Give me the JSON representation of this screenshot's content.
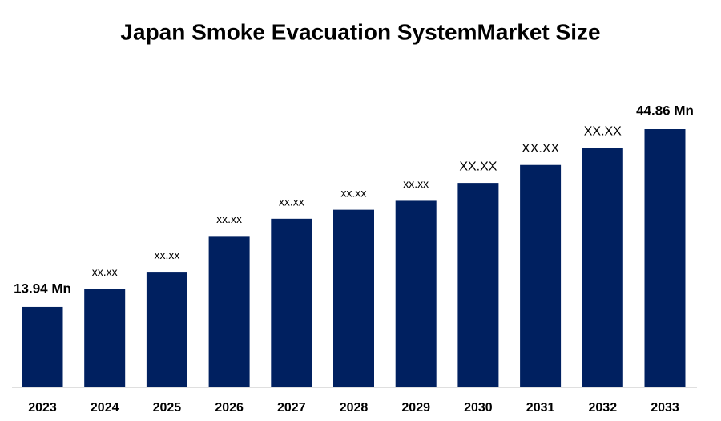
{
  "chart_data": {
    "type": "bar",
    "title": "Japan Smoke Evacuation SystemMarket Size",
    "categories": [
      "2023",
      "2024",
      "2025",
      "2026",
      "2027",
      "2028",
      "2029",
      "2030",
      "2031",
      "2032",
      "2033"
    ],
    "values": [
      13.94,
      17.06,
      20.05,
      26.28,
      29.28,
      30.84,
      32.4,
      35.51,
      38.63,
      41.62,
      44.86
    ],
    "value_labels": [
      "13.94 Mn",
      "xx.xx",
      "xx.xx",
      "xx.xx",
      "xx.xx",
      "xx.xx",
      "xx.xx",
      "XX.XX",
      "XX.XX",
      "XX.XX",
      "44.86 Mn"
    ],
    "color": "#002060"
  }
}
